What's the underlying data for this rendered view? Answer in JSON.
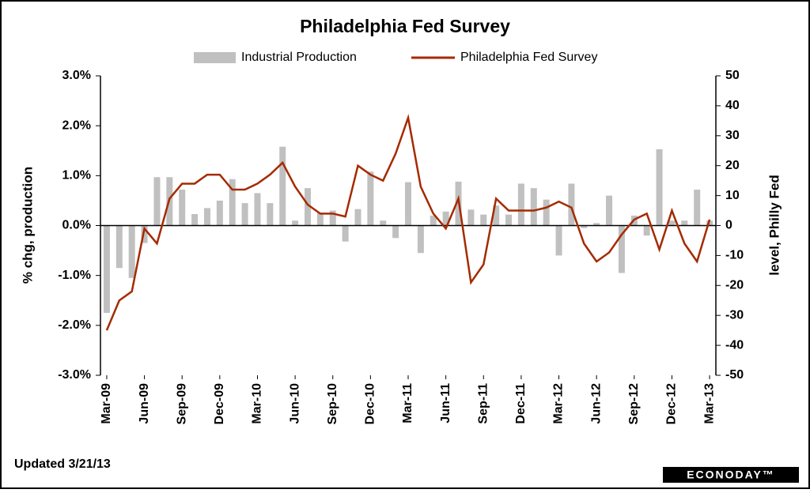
{
  "chart_data": {
    "type": "bar_line",
    "title": "Philadelphia Fed Survey",
    "y_axis_label": "% chg, production",
    "y2_axis_label": "level, Philly Fed",
    "footnote": "Updated 3/21/13",
    "source": "ECONODAY™",
    "categories": [
      "Mar-09",
      null,
      null,
      "Jun-09",
      null,
      null,
      "Sep-09",
      null,
      null,
      "Dec-09",
      null,
      null,
      "Mar-10",
      null,
      null,
      "Jun-10",
      null,
      null,
      "Sep-10",
      null,
      null,
      "Dec-10",
      null,
      null,
      "Mar-11",
      null,
      null,
      "Jun-11",
      null,
      null,
      "Sep-11",
      null,
      null,
      "Dec-11",
      null,
      null,
      "Mar-12",
      null,
      null,
      "Jun-12",
      null,
      null,
      "Sep-12",
      null,
      null,
      "Dec-12",
      null,
      null,
      "Mar-13"
    ],
    "series": [
      {
        "name": "Industrial Production",
        "type": "bar",
        "color": "#c0c0c0",
        "axis": "y",
        "values": [
          -1.75,
          -0.85,
          -1.05,
          -0.35,
          0.97,
          0.97,
          0.72,
          0.23,
          0.35,
          0.5,
          0.93,
          0.45,
          0.65,
          0.45,
          1.58,
          0.1,
          0.75,
          0.25,
          0.3,
          -0.32,
          0.33,
          1.08,
          0.1,
          -0.25,
          0.87,
          -0.55,
          0.2,
          0.28,
          0.88,
          0.32,
          0.22,
          0.4,
          0.22,
          0.84,
          0.75,
          0.52,
          -0.6,
          0.84,
          -0.05,
          0.05,
          0.6,
          -0.95,
          0.2,
          -0.2,
          1.53,
          0.1,
          0.1,
          0.72,
          0.1
        ]
      },
      {
        "name": "Philadelphia Fed Survey",
        "type": "line",
        "color": "#a52a00",
        "axis": "y2",
        "values": [
          -35,
          -25,
          -22,
          -1,
          -6,
          9,
          14,
          14,
          17,
          17,
          12,
          12,
          14,
          17,
          21,
          13,
          7,
          4,
          4,
          3,
          20,
          17,
          15,
          24,
          36,
          13,
          4,
          -1,
          9,
          -19,
          -13,
          9,
          5,
          5,
          5,
          6,
          8,
          6,
          -6,
          -12,
          -9,
          -3,
          2,
          4,
          -8,
          5,
          -6,
          -12,
          2
        ]
      }
    ],
    "ylim": [
      -3,
      3
    ],
    "yticks": [
      {
        "value": -3,
        "label": "-3.0%"
      },
      {
        "value": -2,
        "label": "-2.0%"
      },
      {
        "value": -1,
        "label": "-1.0%"
      },
      {
        "value": 0,
        "label": "0.0%"
      },
      {
        "value": 1,
        "label": "1.0%"
      },
      {
        "value": 2,
        "label": "2.0%"
      },
      {
        "value": 3,
        "label": "3.0%"
      }
    ],
    "y2lim": [
      -50,
      50
    ],
    "y2ticks": [
      -50,
      -40,
      -30,
      -20,
      -10,
      0,
      10,
      20,
      30,
      40,
      50
    ],
    "grid": false,
    "legend": "top"
  }
}
